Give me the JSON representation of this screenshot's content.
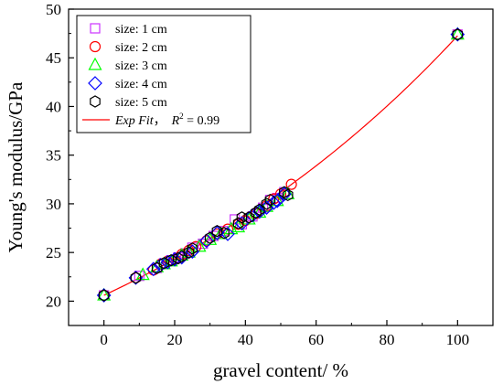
{
  "chart_data": {
    "type": "scatter",
    "xlabel": "gravel content/ %",
    "ylabel": "Young's modulus/GPa",
    "xlim": [
      -10,
      110
    ],
    "ylim": [
      17.5,
      50
    ],
    "x_ticks": [
      "0",
      "20",
      "40",
      "60",
      "80",
      "100"
    ],
    "y_ticks": [
      "20",
      "25",
      "30",
      "35",
      "40",
      "45",
      "50"
    ],
    "legend_position": "top-left",
    "grid": false,
    "series": [
      {
        "name": "size: 1 cm",
        "marker": "square",
        "color": "#cc33ff",
        "points": [
          [
            0,
            20.6
          ],
          [
            10,
            22.6
          ],
          [
            15,
            23.4
          ],
          [
            17,
            23.9
          ],
          [
            19,
            24.2
          ],
          [
            21,
            24.5
          ],
          [
            23,
            24.9
          ],
          [
            25,
            25.5
          ],
          [
            28,
            25.9
          ],
          [
            31,
            26.7
          ],
          [
            34,
            27.2
          ],
          [
            37,
            28.4
          ],
          [
            39,
            27.9
          ],
          [
            42,
            28.7
          ],
          [
            45,
            29.6
          ],
          [
            47,
            30.4
          ],
          [
            49,
            30.6
          ],
          [
            51,
            31.2
          ],
          [
            100,
            47.4
          ]
        ]
      },
      {
        "name": "size: 2 cm",
        "marker": "circle",
        "color": "#ff0000",
        "points": [
          [
            0,
            20.6
          ],
          [
            9,
            22.4
          ],
          [
            14,
            23.2
          ],
          [
            16,
            23.8
          ],
          [
            18,
            24.1
          ],
          [
            20,
            24.3
          ],
          [
            22,
            24.8
          ],
          [
            24,
            25.2
          ],
          [
            26,
            25.6
          ],
          [
            29,
            26.2
          ],
          [
            32,
            26.9
          ],
          [
            35,
            27.4
          ],
          [
            38,
            27.9
          ],
          [
            40,
            28.3
          ],
          [
            43,
            29.0
          ],
          [
            46,
            29.8
          ],
          [
            48,
            30.5
          ],
          [
            50,
            31.0
          ],
          [
            53,
            32.0
          ],
          [
            100,
            47.4
          ]
        ]
      },
      {
        "name": "size: 3 cm",
        "marker": "triangle",
        "color": "#00ff00",
        "points": [
          [
            0,
            20.6
          ],
          [
            11,
            22.7
          ],
          [
            15,
            23.5
          ],
          [
            17,
            23.8
          ],
          [
            19,
            24.1
          ],
          [
            22,
            24.7
          ],
          [
            24,
            25.0
          ],
          [
            27,
            25.6
          ],
          [
            30,
            26.3
          ],
          [
            33,
            26.9
          ],
          [
            36,
            27.4
          ],
          [
            38,
            27.6
          ],
          [
            41,
            28.4
          ],
          [
            44,
            29.1
          ],
          [
            46,
            29.7
          ],
          [
            49,
            30.3
          ],
          [
            52,
            31.0
          ],
          [
            100,
            47.4
          ]
        ]
      },
      {
        "name": "size: 4 cm",
        "marker": "diamond",
        "color": "#0000ff",
        "points": [
          [
            0,
            20.6
          ],
          [
            9,
            22.4
          ],
          [
            14,
            23.3
          ],
          [
            16,
            23.7
          ],
          [
            18,
            24.0
          ],
          [
            20,
            24.3
          ],
          [
            22,
            24.5
          ],
          [
            25,
            25.1
          ],
          [
            29,
            26.2
          ],
          [
            32,
            27.0
          ],
          [
            35,
            26.9
          ],
          [
            39,
            28.0
          ],
          [
            42,
            28.8
          ],
          [
            44,
            29.2
          ],
          [
            46,
            29.6
          ],
          [
            48,
            30.1
          ],
          [
            49,
            30.3
          ],
          [
            51,
            31.0
          ],
          [
            100,
            47.4
          ]
        ]
      },
      {
        "name": "size: 5 cm",
        "marker": "hexagon",
        "color": "#000000",
        "points": [
          [
            0,
            20.6
          ],
          [
            9,
            22.4
          ],
          [
            15,
            23.4
          ],
          [
            17,
            23.9
          ],
          [
            19,
            24.2
          ],
          [
            21,
            24.4
          ],
          [
            22,
            24.6
          ],
          [
            24,
            25.0
          ],
          [
            25,
            25.4
          ],
          [
            30,
            26.5
          ],
          [
            32,
            27.2
          ],
          [
            34,
            27.0
          ],
          [
            38,
            28.0
          ],
          [
            39,
            28.6
          ],
          [
            41,
            28.6
          ],
          [
            43,
            29.1
          ],
          [
            44,
            29.4
          ],
          [
            46,
            30.0
          ],
          [
            47,
            30.4
          ],
          [
            51,
            31.2
          ],
          [
            52,
            30.9
          ],
          [
            100,
            47.4
          ]
        ]
      }
    ],
    "fit": {
      "name_italic": "Exp Fit",
      "name_sep": "，",
      "r2_prefix": "R",
      "r2_sup": "2",
      "r2_suffix": " = 0.99",
      "color": "#ff0000",
      "model": "a*exp(b*x)",
      "a": 20.6,
      "b": 0.008304,
      "x_range": [
        0,
        100
      ]
    }
  }
}
